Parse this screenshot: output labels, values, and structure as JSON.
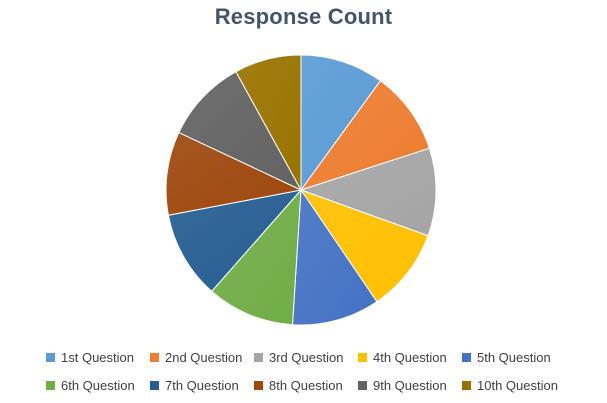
{
  "chart_data": {
    "type": "pie",
    "title": "Response Count",
    "categories": [
      "1st Question",
      "2nd Question",
      "3rd Question",
      "4th Question",
      "5th Question",
      "6th Question",
      "7th Question",
      "8th Question",
      "9th Question",
      "10th Question"
    ],
    "values": [
      10,
      10,
      10.5,
      10,
      10.5,
      10.5,
      10.5,
      10,
      10,
      8
    ],
    "colors": [
      "#5b9bd5",
      "#ed7d31",
      "#a5a5a5",
      "#ffc000",
      "#4472c4",
      "#70ad47",
      "#255e91",
      "#9e480e",
      "#636363",
      "#997300"
    ],
    "legend": "bottom",
    "data_labels": false
  }
}
